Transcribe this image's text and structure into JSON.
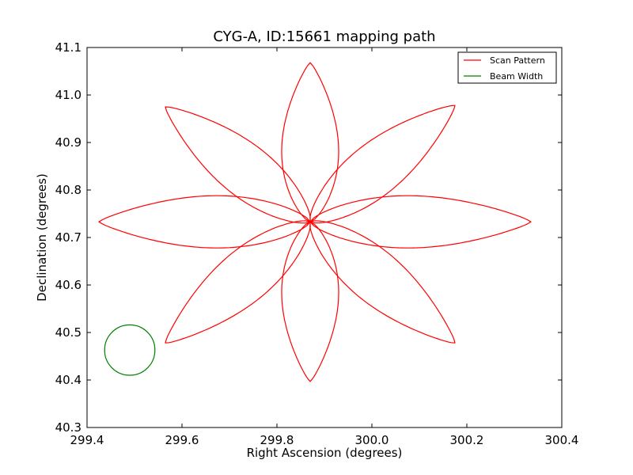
{
  "chart_data": {
    "type": "line",
    "title": "CYG-A, ID:15661 mapping path",
    "xlabel": "Right Ascension (degrees)",
    "ylabel": "Declination (degrees)",
    "xlim": [
      299.4,
      300.4
    ],
    "ylim": [
      40.3,
      41.1
    ],
    "xticks": [
      299.4,
      299.6,
      299.8,
      300.0,
      300.2,
      300.4
    ],
    "xtick_labels": [
      "299.4",
      "299.6",
      "299.8",
      "300.0",
      "300.2",
      "300.4"
    ],
    "yticks": [
      40.3,
      40.4,
      40.5,
      40.6,
      40.7,
      40.8,
      40.9,
      41.0,
      41.1
    ],
    "ytick_labels": [
      "40.3",
      "40.4",
      "40.5",
      "40.6",
      "40.7",
      "40.8",
      "40.9",
      "41.0",
      "41.1"
    ],
    "grid": false,
    "legend_placement": "top-right",
    "series": [
      {
        "name": "Scan Pattern",
        "color": "#ff0000",
        "center": [
          299.87,
          40.733
        ],
        "petals": [
          {
            "angle_deg": 90,
            "tip": [
              299.87,
              41.068
            ],
            "half_width_deg": 0.06
          },
          {
            "angle_deg": 39,
            "tip": [
              300.175,
              40.978
            ],
            "half_width_deg": 0.055
          },
          {
            "angle_deg": -5,
            "tip": [
              300.335,
              40.733
            ],
            "half_width_deg": 0.055
          },
          {
            "angle_deg": -42,
            "tip": [
              300.175,
              40.478
            ],
            "half_width_deg": 0.055
          },
          {
            "angle_deg": -90,
            "tip": [
              299.87,
              40.397
            ],
            "half_width_deg": 0.06
          },
          {
            "angle_deg": -140,
            "tip": [
              299.565,
              40.478
            ],
            "half_width_deg": 0.055
          },
          {
            "angle_deg": 180,
            "tip": [
              299.425,
              40.733
            ],
            "half_width_deg": 0.055
          },
          {
            "angle_deg": 140,
            "tip": [
              299.565,
              40.975
            ],
            "half_width_deg": 0.055
          }
        ]
      },
      {
        "name": "Beam Width",
        "color": "#008000",
        "center": [
          299.49,
          40.463
        ],
        "radius_deg": 0.053
      }
    ]
  }
}
